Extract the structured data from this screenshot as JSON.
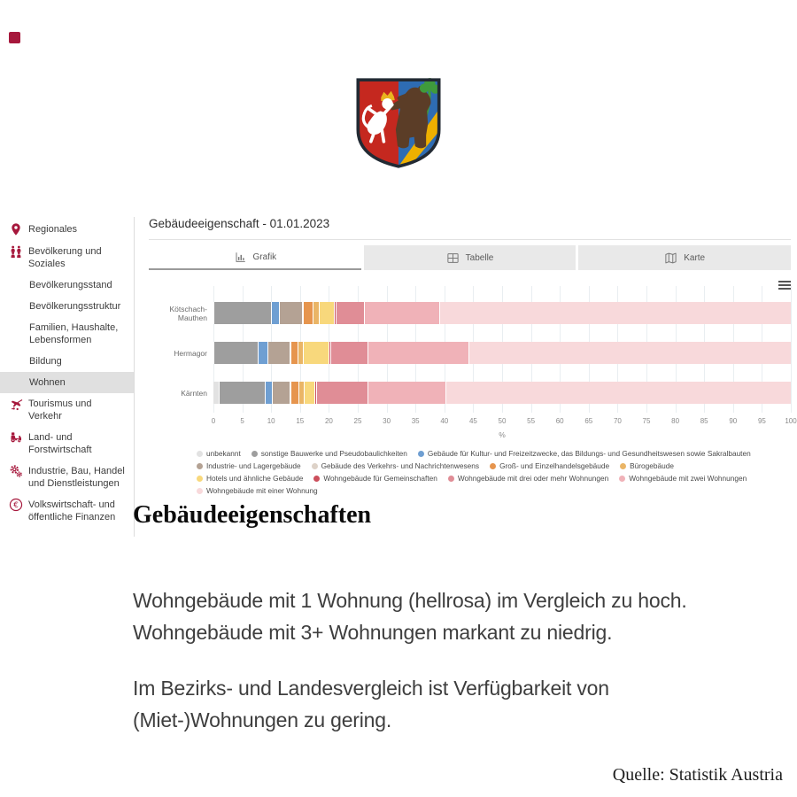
{
  "logo_color": "#a6183c",
  "sidebar": {
    "items": [
      {
        "label": "Regionales",
        "icon": "pin-icon",
        "level": 0,
        "active": false
      },
      {
        "label": "Bevölkerung und Soziales",
        "icon": "people-icon",
        "level": 0,
        "active": false
      },
      {
        "label": "Bevölkerungsstand",
        "level": 1,
        "active": false
      },
      {
        "label": "Bevölkerungsstruktur",
        "level": 1,
        "active": false
      },
      {
        "label": "Familien, Haushalte, Lebensformen",
        "level": 1,
        "active": false
      },
      {
        "label": "Bildung",
        "level": 1,
        "active": false
      },
      {
        "label": "Wohnen",
        "level": 1,
        "active": true
      },
      {
        "label": "Tourismus und Verkehr",
        "icon": "plane-icon",
        "level": 0,
        "active": false
      },
      {
        "label": "Land- und Forstwirtschaft",
        "icon": "tractor-icon",
        "level": 0,
        "active": false
      },
      {
        "label": "Industrie, Bau, Handel und Dienstleistungen",
        "icon": "gears-icon",
        "level": 0,
        "active": false
      },
      {
        "label": "Volkswirtschaft- und öffentliche Finanzen",
        "icon": "euro-icon",
        "level": 0,
        "active": false
      }
    ]
  },
  "panel": {
    "title": "Gebäudeeigenschaft - 01.01.2023",
    "tabs": [
      {
        "label": "Grafik",
        "icon": "chart-icon",
        "active": true
      },
      {
        "label": "Tabelle",
        "icon": "table-icon",
        "active": false
      },
      {
        "label": "Karte",
        "icon": "map-icon",
        "active": false
      }
    ]
  },
  "chart_data": {
    "type": "bar",
    "orientation": "horizontal",
    "stacked": true,
    "categories": [
      "Kötschach-Mauthen",
      "Hermagor",
      "Kärnten"
    ],
    "xlabel": "%",
    "xlim": [
      0,
      100
    ],
    "tick_step": 5,
    "grid": true,
    "legend_position": "bottom",
    "series": [
      {
        "name": "unbekannt",
        "color": "#e2e2e2",
        "values": [
          0.1,
          0.1,
          1.0
        ]
      },
      {
        "name": "sonstige Bauwerke und Pseudobaulichkeiten",
        "color": "#9e9e9e",
        "values": [
          10.0,
          7.7,
          8.0
        ]
      },
      {
        "name": "Gebäude für Kultur- und Freizeitzwecke, das Bildungs- und Gesundheitswesen sowie Sakralbauten",
        "color": "#6f9fd2",
        "values": [
          1.3,
          1.6,
          1.3
        ]
      },
      {
        "name": "Industrie- und Lagergebäude",
        "color": "#b4a294",
        "values": [
          4.0,
          3.9,
          3.0
        ]
      },
      {
        "name": "Gebäude des Verkehrs- und Nachrichtenwesens",
        "color": "#ddd2c8",
        "values": [
          0.1,
          0.2,
          0.2
        ]
      },
      {
        "name": "Groß- und Einzelhandelsgebäude",
        "color": "#e6954e",
        "values": [
          1.8,
          1.2,
          1.4
        ]
      },
      {
        "name": "Bürogebäude",
        "color": "#eab566",
        "values": [
          1.0,
          0.9,
          0.9
        ]
      },
      {
        "name": "Hotels und ähnliche Gebäude",
        "color": "#f8d87c",
        "values": [
          2.7,
          4.4,
          1.9
        ]
      },
      {
        "name": "Wohngebäude für Gemeinschaften",
        "color": "#cc4f5c",
        "values": [
          0.2,
          0.4,
          0.3
        ]
      },
      {
        "name": "Wohngebäude mit drei oder mehr Wohnungen",
        "color": "#e08d96",
        "values": [
          4.9,
          6.4,
          8.9
        ]
      },
      {
        "name": "Wohngebäude mit zwei Wohnungen",
        "color": "#f0b2b8",
        "values": [
          13.1,
          17.5,
          13.5
        ]
      },
      {
        "name": "Wohngebäude mit einer Wohnung",
        "color": "#f8d9db",
        "values": [
          60.8,
          55.7,
          59.6
        ]
      }
    ]
  },
  "notes": {
    "heading": "Gebäudeeigenschaften",
    "paragraphs": [
      "Wohngebäude mit 1 Wohnung (hellrosa) im Vergleich zu hoch.\nWohngebäude mit 3+ Wohnungen markant zu niedrig.",
      "Im Bezirks- und Landesvergleich ist Verfügbarkeit von\n(Miet-)Wohnungen zu gering."
    ],
    "source": "Quelle: Statistik Austria"
  }
}
